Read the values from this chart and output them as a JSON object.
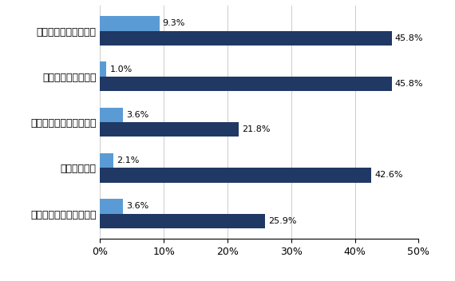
{
  "categories": [
    "ブライベートクラウド",
    "パブリッククラウド",
    "モバイルのビジネス利用",
    "ビッグデータ",
    "ソーシャルネットワーク"
  ],
  "japan_values": [
    45.8,
    45.8,
    21.8,
    42.6,
    25.9
  ],
  "us_values": [
    9.3,
    1.0,
    3.6,
    2.1,
    3.6
  ],
  "japan_labels": [
    "45.8%",
    "45.8%",
    "21.8%",
    "42.6%",
    "25.9%"
  ],
  "us_labels": [
    "9.3%",
    "1.0%",
    "3.6%",
    "2.1%",
    "3.6%"
  ],
  "japan_color": "#1F3864",
  "us_color": "#5B9BD5",
  "xlim": [
    0,
    50
  ],
  "xticks": [
    0,
    10,
    20,
    30,
    40,
    50
  ],
  "xtick_labels": [
    "0%",
    "10%",
    "20%",
    "30%",
    "40%",
    "50%"
  ],
  "bar_height": 0.32,
  "background_color": "#ffffff"
}
